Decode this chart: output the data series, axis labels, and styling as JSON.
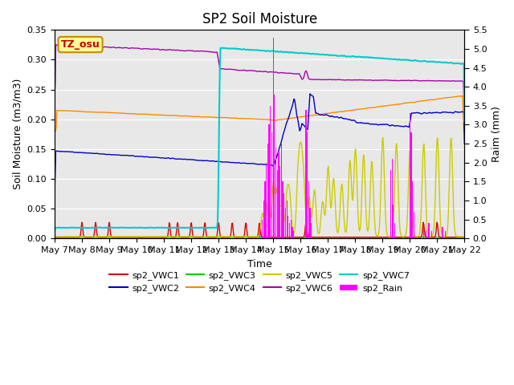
{
  "title": "SP2 Soil Moisture",
  "xlabel": "Time",
  "ylabel_left": "Soil Moisture (m3/m3)",
  "ylabel_right": "Raim (mm)",
  "ylim_left": [
    0.0,
    0.35
  ],
  "ylim_right": [
    0.0,
    5.5
  ],
  "yticks_left": [
    0.0,
    0.05,
    0.1,
    0.15,
    0.2,
    0.25,
    0.3,
    0.35
  ],
  "yticks_right": [
    0.0,
    0.5,
    1.0,
    1.5,
    2.0,
    2.5,
    3.0,
    3.5,
    4.0,
    4.5,
    5.0,
    5.5
  ],
  "x_tick_labels": [
    "May 7",
    "May 8",
    "May 9",
    "May 10",
    "May 11",
    "May 12",
    "May 13",
    "May 14",
    "May 15",
    "May 16",
    "May 17",
    "May 18",
    "May 19",
    "May 20",
    "May 21",
    "May 22"
  ],
  "background_shading": "#e8e8e8",
  "legend_box_color": "#ffff99",
  "legend_box_border": "#cc8800",
  "legend_text_color": "#cc0000",
  "line_colors": {
    "sp2_VWC1": "#dd0000",
    "sp2_VWC2": "#0000cc",
    "sp2_VWC3": "#00cc00",
    "sp2_VWC4": "#ff8800",
    "sp2_VWC5": "#cccc00",
    "sp2_VWC6": "#aa00aa",
    "sp2_VWC7": "#00cccc",
    "sp2_Rain": "#ff00ff"
  },
  "title_fontsize": 12,
  "label_fontsize": 9,
  "tick_fontsize": 8,
  "legend_fontsize": 8
}
